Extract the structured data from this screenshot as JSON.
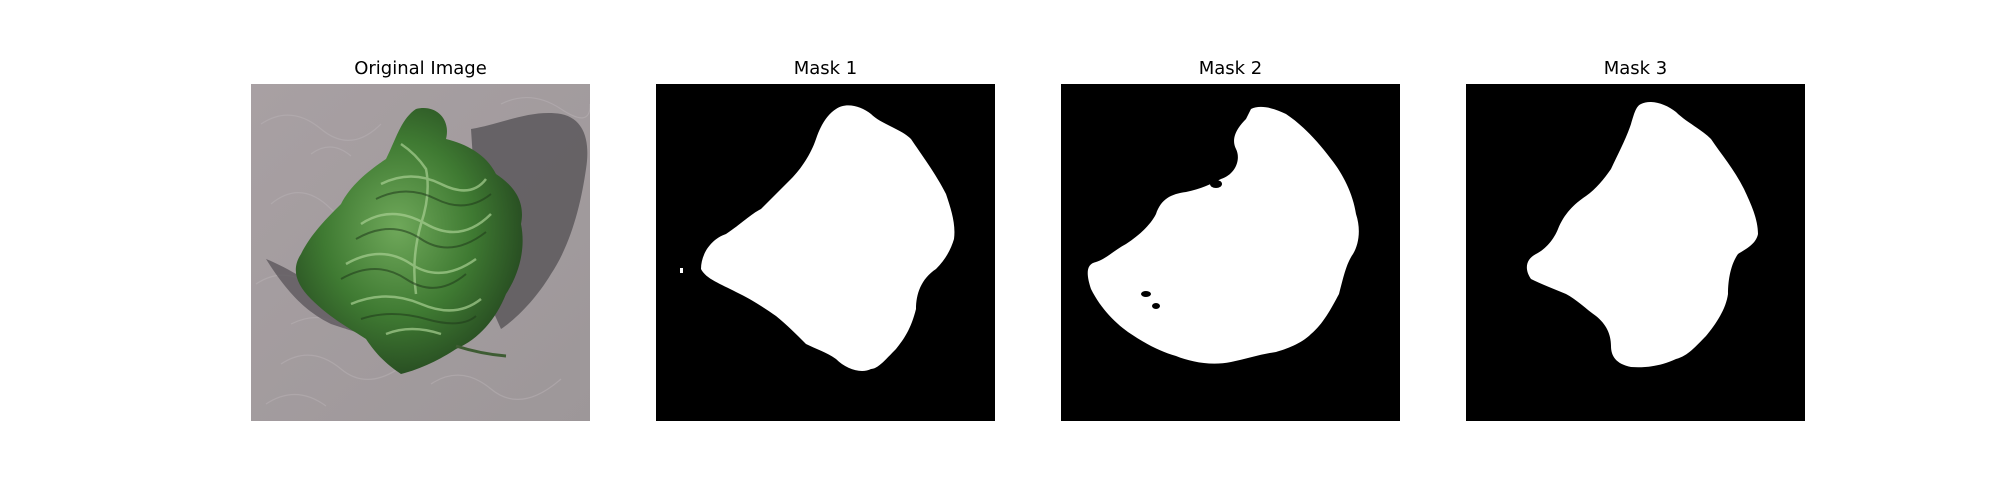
{
  "panels": [
    {
      "title": "Original Image",
      "kind": "photo",
      "subject": "leaf-of-lettuce"
    },
    {
      "title": "Mask 1",
      "kind": "binary-mask"
    },
    {
      "title": "Mask 2",
      "kind": "binary-mask"
    },
    {
      "title": "Mask 3",
      "kind": "binary-mask"
    }
  ],
  "colors": {
    "background": "#ffffff",
    "mask_background": "#000000",
    "mask_foreground": "#ffffff",
    "table_surface": "#a39d9f",
    "leaf_dark": "#2e5a26",
    "leaf_mid": "#4f8a3c",
    "leaf_light": "#8dbb78",
    "shadow": "#5c585c"
  }
}
